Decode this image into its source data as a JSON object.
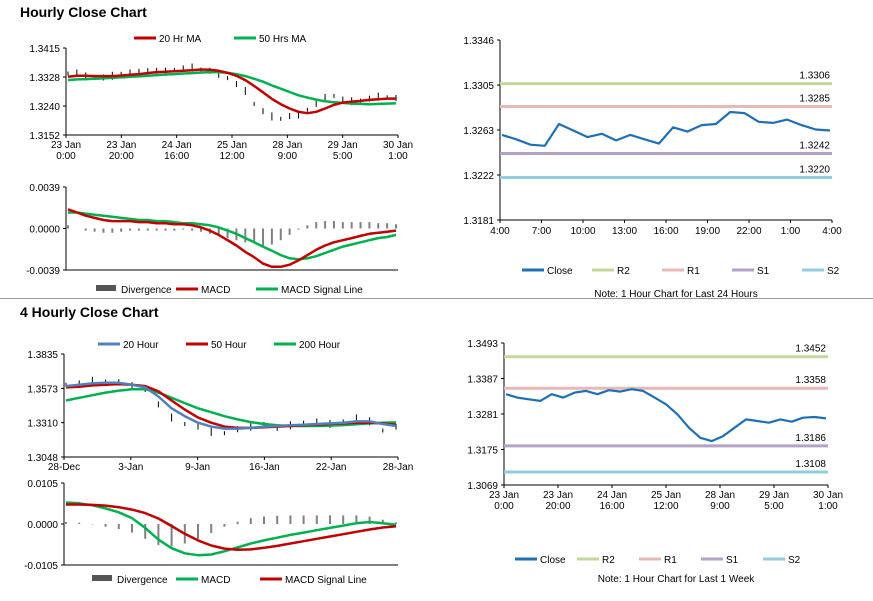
{
  "sections": {
    "hourly_title": "Hourly Close Chart",
    "four_hourly_title": "4 Hourly Close Chart"
  },
  "colors": {
    "price": "#000000",
    "ma_red": "#c00000",
    "ma_green": "#00b050",
    "ma_blue": "#4f81bd",
    "divergence": "#808080",
    "close": "#1f6fb4",
    "r2": "#c4d79b",
    "r1": "#e6b9b8",
    "s1": "#b3a2c7",
    "s2": "#93cddd"
  },
  "chart_data": [
    {
      "id": "hourly_price",
      "type": "line",
      "legend": [
        "20 Hr MA",
        "50 Hrs MA"
      ],
      "y_ticks": [
        "1.3415",
        "1.3328",
        "1.3240",
        "1.3152"
      ],
      "ylim": [
        1.3152,
        1.3415
      ],
      "x_ticks": [
        [
          "23 Jan",
          "0:00"
        ],
        [
          "23 Jan",
          "20:00"
        ],
        [
          "24 Jan",
          "16:00"
        ],
        [
          "25 Jan",
          "12:00"
        ],
        [
          "28 Jan",
          "9:00"
        ],
        [
          "29 Jan",
          "5:00"
        ],
        [
          "30 Jan",
          "1:00"
        ]
      ],
      "series": [
        {
          "name": "Close",
          "values": [
            1.3338,
            1.3341,
            1.3329,
            1.3324,
            1.3326,
            1.3331,
            1.3337,
            1.3341,
            1.334,
            1.3348,
            1.3346,
            1.3343,
            1.3349,
            1.3353,
            1.3356,
            1.335,
            1.3346,
            1.3337,
            1.3324,
            1.3306,
            1.3285,
            1.3246,
            1.3224,
            1.3208,
            1.3201,
            1.3209,
            1.3214,
            1.3228,
            1.3246,
            1.3264,
            1.327,
            1.3259,
            1.3254,
            1.3256,
            1.3262,
            1.3268,
            1.3266,
            1.3264
          ]
        },
        {
          "name": "20 Hr MA",
          "values": [
            1.3328,
            1.3331,
            1.3331,
            1.333,
            1.333,
            1.333,
            1.3332,
            1.3334,
            1.3336,
            1.3339,
            1.3342,
            1.3343,
            1.3345,
            1.3346,
            1.3348,
            1.335,
            1.3349,
            1.3346,
            1.334,
            1.3331,
            1.3318,
            1.33,
            1.3281,
            1.3261,
            1.3245,
            1.3232,
            1.3222,
            1.3218,
            1.3222,
            1.3232,
            1.3243,
            1.325,
            1.3253,
            1.3255,
            1.3258,
            1.326,
            1.3262,
            1.3262
          ]
        },
        {
          "name": "50 Hrs MA",
          "values": [
            1.3318,
            1.332,
            1.3321,
            1.3322,
            1.3323,
            1.3325,
            1.3326,
            1.3328,
            1.3329,
            1.3331,
            1.3333,
            1.3335,
            1.3336,
            1.3338,
            1.3339,
            1.3341,
            1.3342,
            1.3342,
            1.334,
            1.3336,
            1.333,
            1.3322,
            1.3313,
            1.3302,
            1.3292,
            1.3282,
            1.3272,
            1.3265,
            1.3259,
            1.3254,
            1.3251,
            1.3249,
            1.3247,
            1.3246,
            1.3245,
            1.3246,
            1.3247,
            1.3248
          ]
        }
      ]
    },
    {
      "id": "hourly_macd",
      "type": "line",
      "legend": [
        "Divergence",
        "MACD",
        "MACD Signal Line"
      ],
      "y_ticks": [
        "0.0039",
        "0.0000",
        "-0.0039"
      ],
      "ylim": [
        -0.0039,
        0.0039
      ],
      "series": [
        {
          "name": "MACD",
          "values": [
            0.0018,
            0.0015,
            0.0012,
            0.001,
            0.0008,
            0.0007,
            0.0007,
            0.0007,
            0.0006,
            0.0006,
            0.0005,
            0.0005,
            0.0004,
            0.0004,
            0.0003,
            0.0001,
            -0.0002,
            -0.0006,
            -0.0011,
            -0.0016,
            -0.0022,
            -0.0027,
            -0.0033,
            -0.0036,
            -0.0036,
            -0.0034,
            -0.003,
            -0.0025,
            -0.002,
            -0.0016,
            -0.0013,
            -0.0011,
            -0.0009,
            -0.0007,
            -0.0005,
            -0.0004,
            -0.0003,
            -0.0002
          ]
        },
        {
          "name": "MACD Signal Line",
          "values": [
            0.0015,
            0.0015,
            0.0014,
            0.0013,
            0.0012,
            0.0011,
            0.001,
            0.0009,
            0.0008,
            0.0008,
            0.0007,
            0.0007,
            0.0006,
            0.0005,
            0.0005,
            0.0004,
            0.0003,
            0.0001,
            -0.0002,
            -0.0005,
            -0.0009,
            -0.0013,
            -0.0017,
            -0.0021,
            -0.0025,
            -0.0028,
            -0.0029,
            -0.0028,
            -0.0026,
            -0.0023,
            -0.002,
            -0.0017,
            -0.0015,
            -0.0013,
            -0.0011,
            -0.0009,
            -0.0008,
            -0.0006
          ]
        },
        {
          "name": "Divergence",
          "values": [
            0.0003,
            0.0,
            -0.0002,
            -0.0003,
            -0.0004,
            -0.0004,
            -0.0003,
            -0.0002,
            -0.0002,
            -0.0002,
            -0.0002,
            -0.0002,
            -0.0002,
            -0.0001,
            -0.0002,
            -0.0003,
            -0.0005,
            -0.0007,
            -0.0009,
            -0.0011,
            -0.0013,
            -0.0014,
            -0.0016,
            -0.0015,
            -0.0011,
            -0.0006,
            -0.0001,
            0.0003,
            0.0006,
            0.0007,
            0.0007,
            0.0006,
            0.0006,
            0.0006,
            0.0006,
            0.0005,
            0.0005,
            0.0004
          ]
        }
      ]
    },
    {
      "id": "hourly_levels",
      "type": "line",
      "legend": [
        "Close",
        "R2",
        "R1",
        "S1",
        "S2"
      ],
      "note": "Note: 1 Hour Chart for Last 24 Hours",
      "y_ticks": [
        "1.3346",
        "1.3305",
        "1.3263",
        "1.3222",
        "1.3181"
      ],
      "ylim": [
        1.3181,
        1.3346
      ],
      "x_ticks": [
        "4:00",
        "7:00",
        "10:00",
        "13:00",
        "16:00",
        "19:00",
        "22:00",
        "1:00",
        "4:00"
      ],
      "levels": [
        {
          "name": "R2",
          "value": 1.3306,
          "label": "1.3306"
        },
        {
          "name": "R1",
          "value": 1.3285,
          "label": "1.3285"
        },
        {
          "name": "S1",
          "value": 1.3242,
          "label": "1.3242"
        },
        {
          "name": "S2",
          "value": 1.322,
          "label": "1.3220"
        }
      ],
      "series": [
        {
          "name": "Close",
          "values": [
            1.3259,
            1.3255,
            1.325,
            1.3249,
            1.3269,
            1.3263,
            1.3257,
            1.326,
            1.3254,
            1.3259,
            1.3255,
            1.3251,
            1.3266,
            1.3262,
            1.3268,
            1.3269,
            1.328,
            1.3279,
            1.3271,
            1.327,
            1.3273,
            1.3268,
            1.3264,
            1.3263
          ]
        }
      ]
    },
    {
      "id": "four_hourly_price",
      "type": "line",
      "legend": [
        "20 Hour",
        "50 Hour",
        "200 Hour"
      ],
      "y_ticks": [
        "1.3835",
        "1.3573",
        "1.3310",
        "1.3048"
      ],
      "ylim": [
        1.3048,
        1.3835
      ],
      "x_ticks": [
        "28-Dec",
        "3-Jan",
        "9-Jan",
        "16-Jan",
        "22-Jan",
        "28-Jan"
      ],
      "series": [
        {
          "name": "Close",
          "values": [
            1.36,
            1.361,
            1.363,
            1.3625,
            1.362,
            1.359,
            1.356,
            1.345,
            1.335,
            1.33,
            1.328,
            1.324,
            1.323,
            1.326,
            1.328,
            1.33,
            1.327,
            1.329,
            1.331,
            1.332,
            1.33,
            1.332,
            1.335,
            1.332,
            1.325,
            1.328
          ]
        },
        {
          "name": "20 Hour",
          "values": [
            1.359,
            1.36,
            1.361,
            1.3615,
            1.3615,
            1.36,
            1.358,
            1.351,
            1.342,
            1.336,
            1.331,
            1.328,
            1.3265,
            1.3265,
            1.327,
            1.328,
            1.3285,
            1.329,
            1.3295,
            1.33,
            1.3305,
            1.331,
            1.332,
            1.332,
            1.33,
            1.3285
          ]
        },
        {
          "name": "50 Hour",
          "values": [
            1.358,
            1.3585,
            1.3595,
            1.36,
            1.3605,
            1.36,
            1.359,
            1.355,
            1.348,
            1.341,
            1.335,
            1.331,
            1.328,
            1.327,
            1.327,
            1.3275,
            1.328,
            1.3285,
            1.329,
            1.3295,
            1.33,
            1.3305,
            1.331,
            1.331,
            1.3305,
            1.3295
          ]
        },
        {
          "name": "200 Hour",
          "values": [
            1.348,
            1.35,
            1.352,
            1.354,
            1.3555,
            1.3565,
            1.3565,
            1.354,
            1.35,
            1.346,
            1.342,
            1.339,
            1.336,
            1.3335,
            1.3315,
            1.33,
            1.329,
            1.3285,
            1.3285,
            1.3285,
            1.3288,
            1.3292,
            1.3298,
            1.3305,
            1.331,
            1.3312
          ]
        }
      ]
    },
    {
      "id": "four_hourly_macd",
      "type": "line",
      "legend": [
        "Divergence",
        "MACD",
        "MACD Signal Line"
      ],
      "y_ticks": [
        "0.0105",
        "0.0000",
        "-0.0105"
      ],
      "ylim": [
        -0.0105,
        0.0105
      ],
      "series": [
        {
          "name": "MACD",
          "values": [
            0.0055,
            0.0053,
            0.0048,
            0.004,
            0.003,
            0.0015,
            -0.001,
            -0.004,
            -0.0062,
            -0.0075,
            -0.008,
            -0.0078,
            -0.007,
            -0.006,
            -0.005,
            -0.0042,
            -0.0035,
            -0.0028,
            -0.0022,
            -0.0016,
            -0.001,
            -0.0004,
            0.0002,
            0.0005,
            0.0002,
            -0.0002
          ]
        },
        {
          "name": "MACD Signal Line",
          "values": [
            0.005,
            0.005,
            0.0049,
            0.0047,
            0.0043,
            0.0037,
            0.0028,
            0.0014,
            -0.0005,
            -0.0025,
            -0.0042,
            -0.0055,
            -0.0063,
            -0.0066,
            -0.0065,
            -0.0061,
            -0.0056,
            -0.005,
            -0.0044,
            -0.0038,
            -0.0032,
            -0.0026,
            -0.002,
            -0.0014,
            -0.0009,
            -0.0006
          ]
        },
        {
          "name": "Divergence",
          "values": [
            0.0005,
            0.0003,
            -0.0001,
            -0.0007,
            -0.0013,
            -0.0022,
            -0.0038,
            -0.0054,
            -0.0057,
            -0.005,
            -0.0038,
            -0.0023,
            -0.0007,
            0.0006,
            0.0015,
            0.0019,
            0.0021,
            0.0022,
            0.0022,
            0.0022,
            0.0022,
            0.0022,
            0.0022,
            0.0019,
            0.0011,
            0.0004
          ]
        }
      ]
    },
    {
      "id": "four_hourly_levels",
      "type": "line",
      "legend": [
        "Close",
        "R2",
        "R1",
        "S1",
        "S2"
      ],
      "note": "Note: 1 Hour Chart for Last 1 Week",
      "y_ticks": [
        "1.3493",
        "1.3387",
        "1.3281",
        "1.3175",
        "1.3069"
      ],
      "ylim": [
        1.3069,
        1.3493
      ],
      "x_ticks": [
        [
          "23 Jan",
          "0:00"
        ],
        [
          "23 Jan",
          "20:00"
        ],
        [
          "24 Jan",
          "16:00"
        ],
        [
          "25 Jan",
          "12:00"
        ],
        [
          "28 Jan",
          "9:00"
        ],
        [
          "29 Jan",
          "5:00"
        ],
        [
          "30 Jan",
          "1:00"
        ]
      ],
      "levels": [
        {
          "name": "R2",
          "value": 1.3452,
          "label": "1.3452"
        },
        {
          "name": "R1",
          "value": 1.3358,
          "label": "1.3358"
        },
        {
          "name": "S1",
          "value": 1.3186,
          "label": "1.3186"
        },
        {
          "name": "S2",
          "value": 1.3108,
          "label": "1.3108"
        }
      ],
      "series": [
        {
          "name": "Close",
          "values": [
            1.334,
            1.333,
            1.3325,
            1.332,
            1.334,
            1.333,
            1.3345,
            1.335,
            1.334,
            1.3352,
            1.3348,
            1.3355,
            1.335,
            1.333,
            1.331,
            1.328,
            1.324,
            1.321,
            1.32,
            1.3215,
            1.324,
            1.3265,
            1.326,
            1.3255,
            1.3265,
            1.3258,
            1.327,
            1.3272,
            1.3268
          ]
        }
      ]
    }
  ]
}
